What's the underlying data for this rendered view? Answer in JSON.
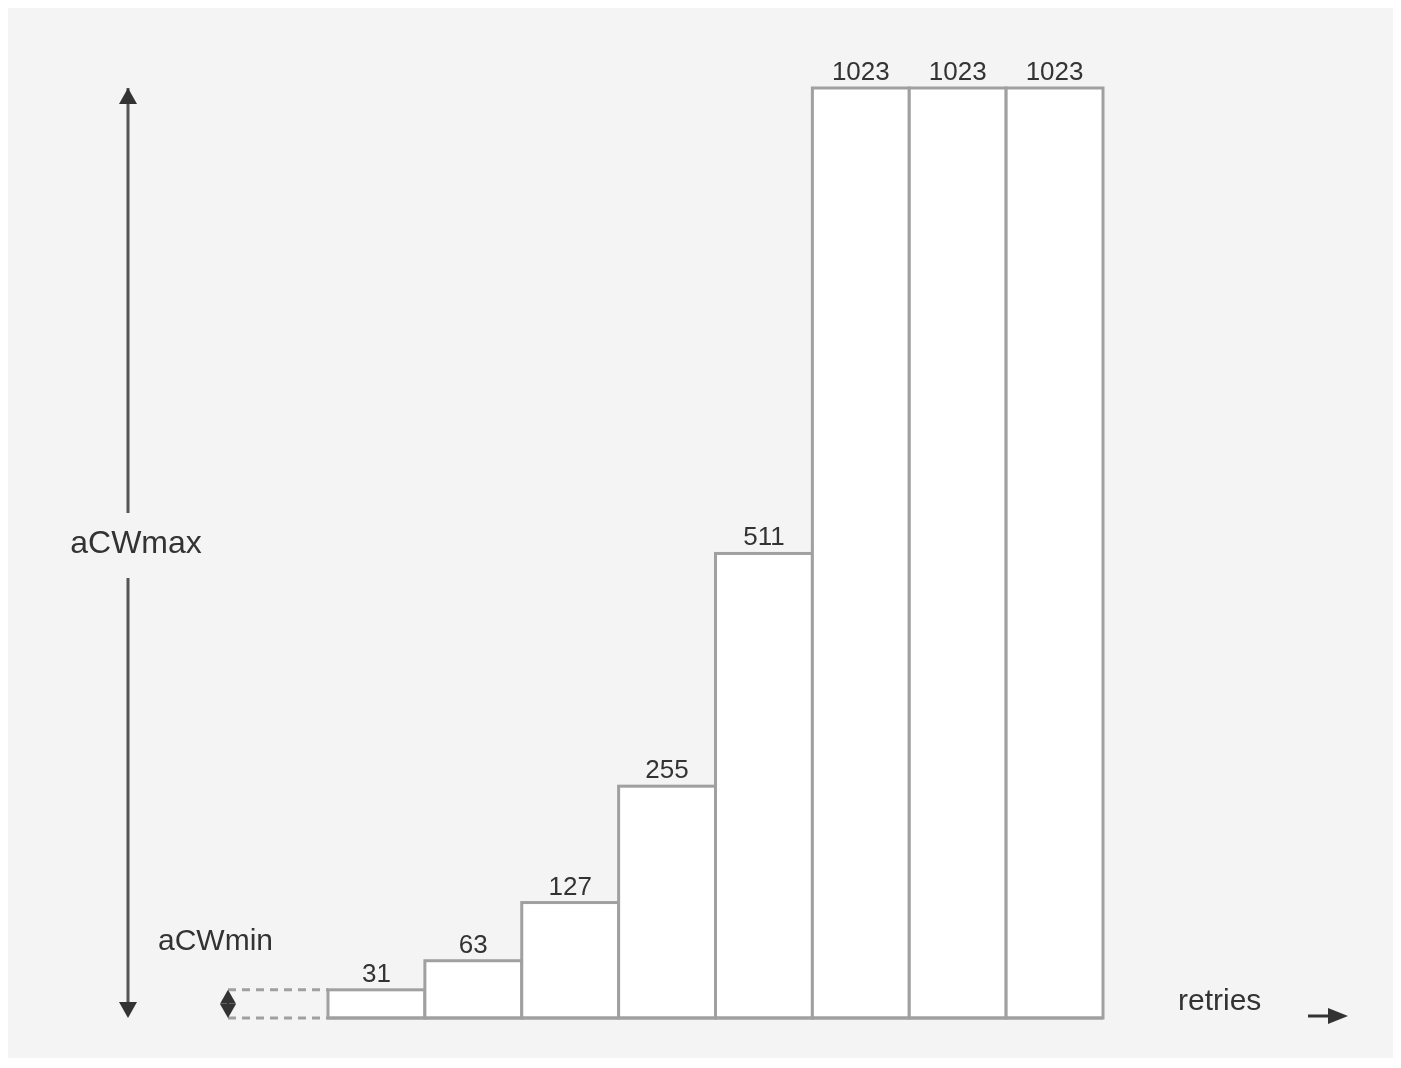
{
  "chart_data": {
    "type": "bar",
    "xlabel": "retries",
    "categories": [
      null,
      null,
      null,
      null,
      null,
      null,
      null,
      null
    ],
    "values": [
      31,
      63,
      127,
      255,
      511,
      1023,
      1023,
      1023
    ],
    "color": "#ffffff",
    "data_labels": true,
    "ref_lines": [
      {
        "axis": "y",
        "value": 31,
        "label": "aCWmin",
        "line_style": "dashed",
        "color": "#a0a0a0"
      }
    ],
    "annotations": [
      "aCWmax"
    ]
  }
}
